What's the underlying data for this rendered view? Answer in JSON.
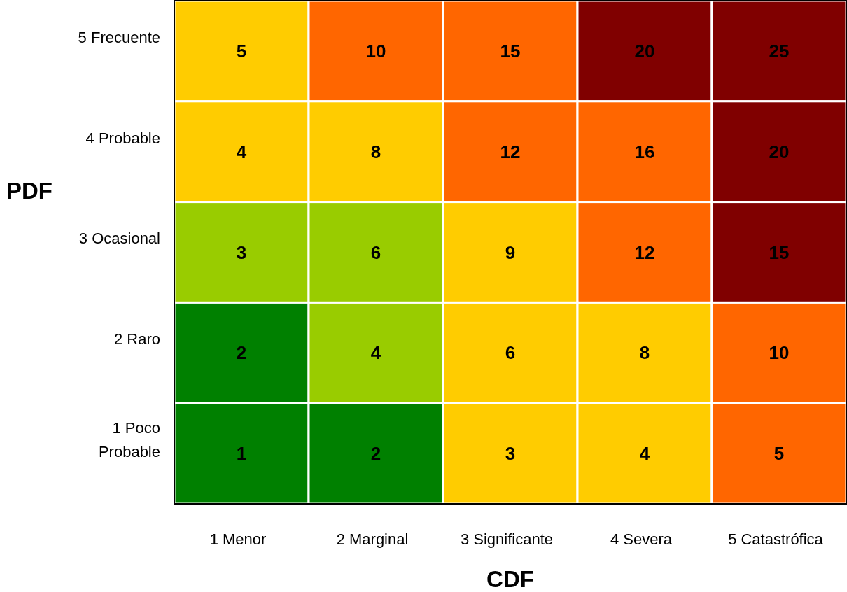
{
  "chart_data": {
    "type": "heatmap",
    "xlabel": "CDF",
    "ylabel": "PDF",
    "categories": [
      "1 Menor",
      "2 Marginal",
      "3 Significante",
      "4 Severa",
      "5 Catastrófica"
    ],
    "y_categories": [
      "5 Frecuente",
      "4 Probable",
      "3 Ocasional",
      "2 Raro",
      "1 Poco Probable"
    ],
    "cells": [
      [
        5,
        10,
        15,
        20,
        25
      ],
      [
        4,
        8,
        12,
        16,
        20
      ],
      [
        3,
        6,
        9,
        12,
        15
      ],
      [
        2,
        4,
        6,
        8,
        10
      ],
      [
        1,
        2,
        3,
        4,
        5
      ]
    ],
    "colors": [
      [
        "#ffcc00",
        "#ff6600",
        "#ff6600",
        "#800000",
        "#800000"
      ],
      [
        "#ffcc00",
        "#ffcc00",
        "#ff6600",
        "#ff6600",
        "#800000"
      ],
      [
        "#99cc00",
        "#99cc00",
        "#ffcc00",
        "#ff6600",
        "#800000"
      ],
      [
        "#008000",
        "#99cc00",
        "#ffcc00",
        "#ffcc00",
        "#ff6600"
      ],
      [
        "#008000",
        "#008000",
        "#ffcc00",
        "#ffcc00",
        "#ff6600"
      ]
    ],
    "data_labels": true
  }
}
